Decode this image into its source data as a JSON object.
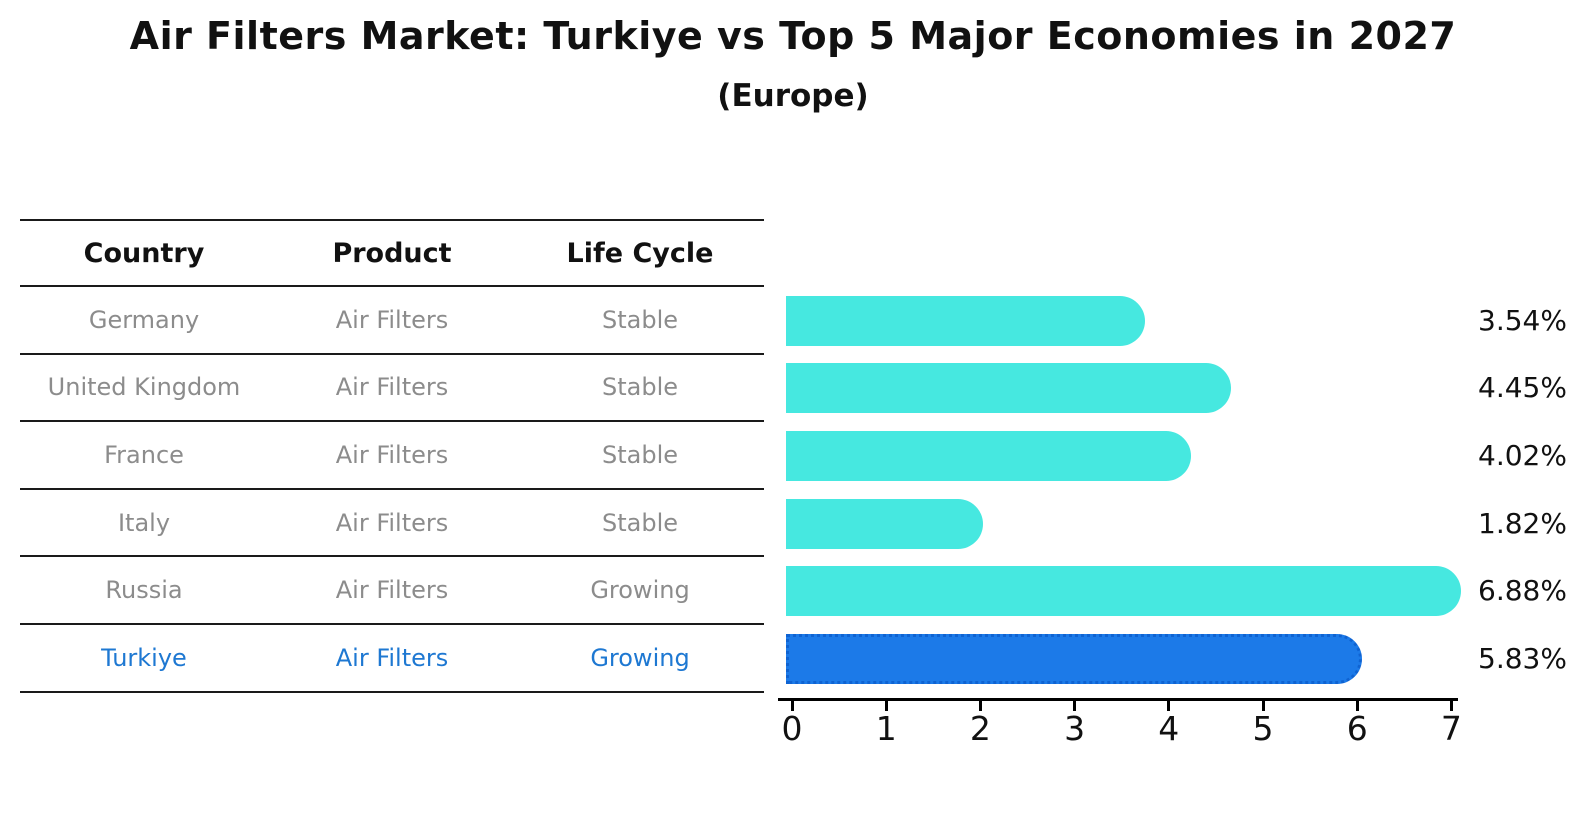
{
  "title": "Air Filters Market: Turkiye vs Top 5 Major Economies in 2027",
  "subtitle": "(Europe)",
  "table": {
    "headers": [
      "Country",
      "Product",
      "Life Cycle"
    ],
    "rows": [
      {
        "country": "Germany",
        "product": "Air Filters",
        "life_cycle": "Stable",
        "highlight": false
      },
      {
        "country": "United Kingdom",
        "product": "Air Filters",
        "life_cycle": "Stable",
        "highlight": false
      },
      {
        "country": "France",
        "product": "Air Filters",
        "life_cycle": "Stable",
        "highlight": false
      },
      {
        "country": "Italy",
        "product": "Air Filters",
        "life_cycle": "Stable",
        "highlight": false
      },
      {
        "country": "Russia",
        "product": "Air Filters",
        "life_cycle": "Growing",
        "highlight": false
      },
      {
        "country": "Turkiye",
        "product": "Air Filters",
        "life_cycle": "Growing",
        "highlight": true
      }
    ]
  },
  "chart_data": {
    "type": "bar",
    "orientation": "horizontal",
    "title": "Air Filters Market: Turkiye vs Top 5 Major Economies in 2027",
    "subtitle": "(Europe)",
    "categories": [
      "Germany",
      "United Kingdom",
      "France",
      "Italy",
      "Russia",
      "Turkiye"
    ],
    "values": [
      3.54,
      4.45,
      4.02,
      1.82,
      6.88,
      5.83
    ],
    "value_labels": [
      "3.54%",
      "4.45%",
      "4.02%",
      "1.82%",
      "6.88%",
      "5.83%"
    ],
    "xlim": [
      0,
      7
    ],
    "x_ticks": [
      0,
      1,
      2,
      3,
      4,
      5,
      6,
      7
    ],
    "grid": false,
    "legend": false,
    "bar_color": "#46e8e0",
    "highlight_bar_color": "#1c7ae8",
    "highlight_category": "Turkiye"
  },
  "colors": {
    "background": "#ffffff",
    "title_text": "#111111",
    "row_text": "#8c8c8c",
    "highlight_text": "#1e78d2",
    "table_line": "#1a1a1a",
    "axis": "#000000",
    "bar": "#46e8e0",
    "highlight_bar": "#1c7ae8"
  }
}
